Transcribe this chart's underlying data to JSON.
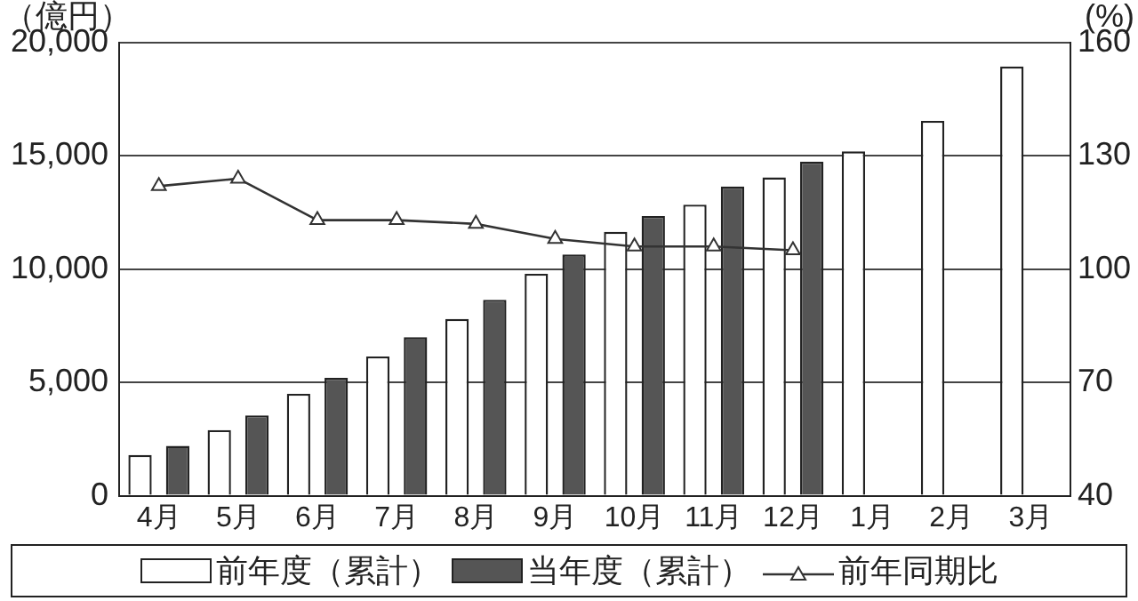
{
  "chart_data": {
    "type": "bar",
    "ylabel": "（億円）",
    "y2label": "(%)",
    "categories": [
      "4月",
      "5月",
      "6月",
      "7月",
      "8月",
      "9月",
      "10月",
      "11月",
      "12月",
      "1月",
      "2月",
      "3月"
    ],
    "series": [
      {
        "name": "前年度（累計）",
        "color": "#ffffff",
        "values": [
          1800,
          2900,
          4500,
          6150,
          7800,
          9800,
          11650,
          12850,
          14050,
          15200,
          16550,
          18950
        ]
      },
      {
        "name": "当年度（累計）",
        "color": "#555555",
        "values": [
          2200,
          3550,
          5200,
          7000,
          8650,
          10650,
          12350,
          13650,
          14750,
          null,
          null,
          null
        ]
      },
      {
        "name": "前年同期比",
        "type": "line",
        "axis": "y2",
        "color": "#333333",
        "marker": "triangle",
        "values": [
          122,
          124,
          113,
          113,
          112,
          108,
          106,
          106,
          105,
          null,
          null,
          null
        ]
      }
    ],
    "ylim": [
      0,
      20000
    ],
    "yticks": [
      {
        "value": 0,
        "label": "0"
      },
      {
        "value": 5000,
        "label": "5,000"
      },
      {
        "value": 10000,
        "label": "10,000"
      },
      {
        "value": 15000,
        "label": "15,000"
      },
      {
        "value": 20000,
        "label": "20,000"
      }
    ],
    "y2lim": [
      40,
      160
    ],
    "y2ticks": [
      40,
      70,
      100,
      130,
      160
    ],
    "grid": "y",
    "legend": "bottom"
  }
}
